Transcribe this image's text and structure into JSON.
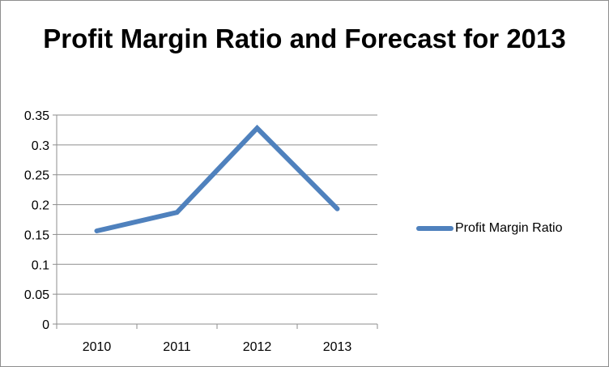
{
  "chart_data": {
    "type": "line",
    "title": "Profit Margin Ratio and Forecast for 2013",
    "categories": [
      "2010",
      "2011",
      "2012",
      "2013"
    ],
    "series": [
      {
        "name": "Profit Margin Ratio",
        "values": [
          0.156,
          0.187,
          0.328,
          0.193
        ],
        "color": "#4f81bd"
      }
    ],
    "ylim": [
      0,
      0.35
    ],
    "yticks": [
      "0",
      "0.05",
      "0.1",
      "0.15",
      "0.2",
      "0.25",
      "0.3",
      "0.35"
    ],
    "grid": true,
    "legend": "right"
  }
}
